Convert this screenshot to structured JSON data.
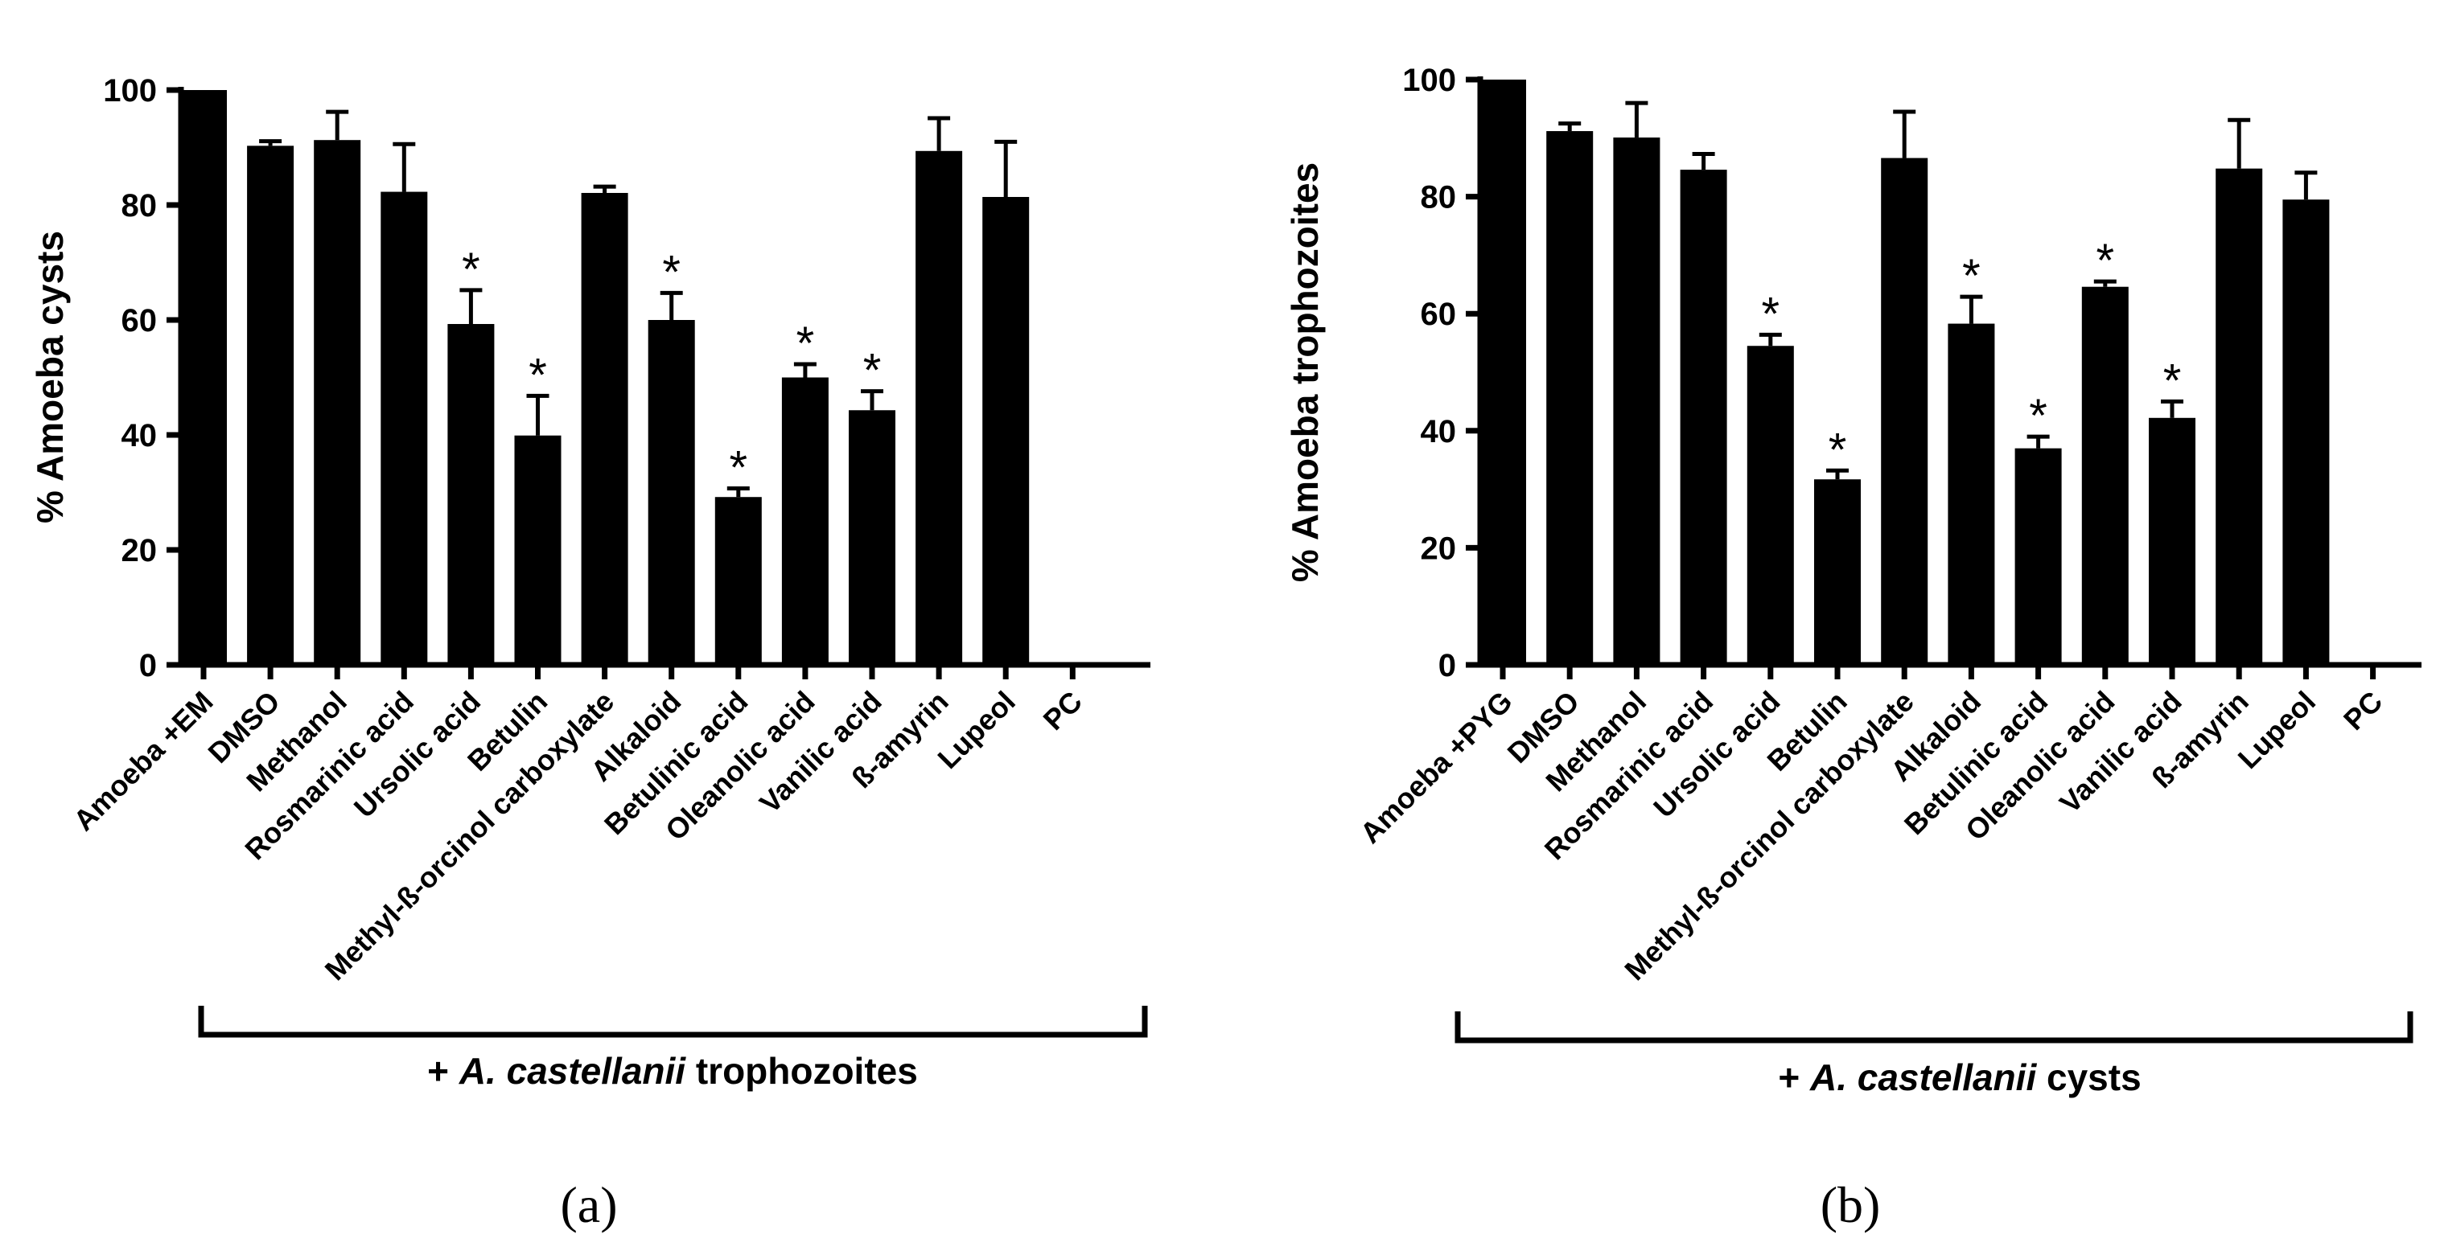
{
  "chart_data": [
    {
      "id": "a",
      "type": "bar",
      "panel_label": "(a)",
      "ylabel": "% Amoeba cysts",
      "ylim": [
        0,
        100
      ],
      "yticks": [
        0,
        20,
        40,
        60,
        80,
        100
      ],
      "group_label_prefix": "+ ",
      "group_label_species": "A. castellanii",
      "group_label_suffix": "  trophozoites",
      "significance_marker": "*",
      "categories": [
        "Amoeba +EM",
        "DMSO",
        "Methanol",
        "Rosmarinic acid",
        "Ursolic acid",
        "Betulin",
        "Methyl-ß-orcinol carboxylate",
        "Alkaloid",
        "Betulinic acid",
        "Oleanolic acid",
        "Vanilic acid",
        "ß-amyrin",
        "Lupeol",
        "PC"
      ],
      "values": [
        100,
        90.3,
        91.3,
        82.3,
        59.3,
        39.9,
        82.1,
        60.0,
        29.2,
        50.0,
        44.3,
        89.4,
        81.4,
        0
      ],
      "errors": [
        0,
        0.8,
        4.9,
        8.3,
        5.9,
        6.9,
        1.1,
        4.7,
        1.5,
        2.3,
        3.3,
        5.7,
        9.6,
        0
      ],
      "significant": [
        false,
        false,
        false,
        false,
        true,
        true,
        false,
        true,
        true,
        true,
        true,
        false,
        false,
        false
      ]
    },
    {
      "id": "b",
      "type": "bar",
      "panel_label": "(b)",
      "ylabel": "% Amoeba trophozoites",
      "ylim": [
        0,
        100
      ],
      "yticks": [
        0,
        20,
        40,
        60,
        80,
        100
      ],
      "group_label_prefix": "+ ",
      "group_label_species": "A. castellanii",
      "group_label_suffix": " cysts",
      "significance_marker": "*",
      "categories": [
        "Amoeba +PYG",
        "DMSO",
        "Methanol",
        "Rosmarinic acid",
        "Ursolic acid",
        "Betulin",
        "Methyl-ß-orcinol carboxylate",
        "Alkaloid",
        "Betulinic acid",
        "Oleanolic acid",
        "Vanilic acid",
        "ß-amyrin",
        "Lupeol",
        "PC"
      ],
      "values": [
        100,
        91.2,
        90.1,
        84.6,
        54.5,
        31.7,
        86.6,
        58.3,
        37.0,
        64.6,
        42.2,
        84.8,
        79.5,
        0
      ],
      "errors": [
        0,
        1.3,
        5.9,
        2.7,
        1.9,
        1.5,
        7.9,
        4.6,
        2.0,
        0.9,
        2.8,
        8.3,
        4.6,
        0
      ],
      "significant": [
        false,
        false,
        false,
        false,
        true,
        true,
        false,
        true,
        true,
        true,
        true,
        false,
        false,
        false
      ]
    }
  ]
}
